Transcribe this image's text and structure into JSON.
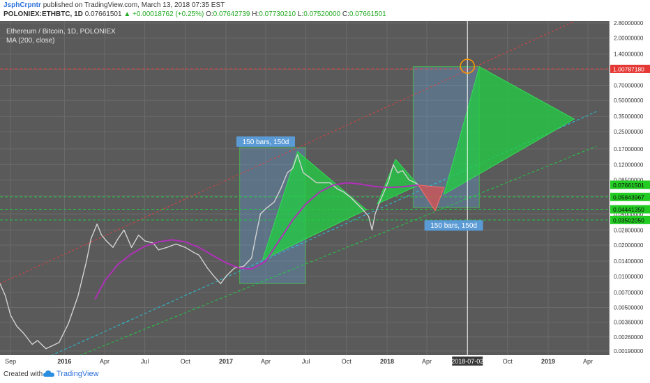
{
  "header": {
    "author": "JsphCrpntr",
    "published": "published on TradingView.com, March 13, 2018 07:35 EST",
    "symbol": "POLONIEX:ETHBTC, 1D",
    "last": "0.07661501",
    "change": "+0.00018762 (+0.25%)",
    "open_label": "O:",
    "open": "0.07642739",
    "high_label": "H:",
    "high": "0.07730210",
    "low_label": "L:",
    "low": "0.07520000",
    "close_label": "C:",
    "close": "0.07661501"
  },
  "legend": {
    "title": "Ethereum / Bitcoin, 1D, POLONIEX",
    "indicator": "MA (200, close)"
  },
  "footer": {
    "created": "Created with",
    "brand": "TradingView"
  },
  "colors": {
    "bg": "#5a5a5a",
    "grid": "#6b6b6b",
    "price": "#d2d2d2",
    "ma": "#b031b8",
    "up": "#22cc44",
    "down": "#e05050",
    "resistance": "#e04040",
    "support": "#26c6da",
    "box_blue": "#64b5f6",
    "box_green": "#4caf50",
    "label_bg": "#5b9bd5",
    "vline": "#ffffff"
  },
  "chart_data": {
    "type": "line",
    "title": "Ethereum / Bitcoin, 1D, POLONIEX",
    "scale": "log",
    "y_axis_ticks": [
      "2.80000000",
      "2.00000000",
      "1.40000000",
      "1.00000000",
      "0.70000000",
      "0.50000000",
      "0.35000000",
      "0.25000000",
      "0.17000000",
      "0.12000000",
      "0.08500000",
      "0.06000000",
      "0.04000000",
      "0.02800000",
      "0.02000000",
      "0.01400000",
      "0.01000000",
      "0.00700000",
      "0.00500000",
      "0.00360000",
      "0.00260000",
      "0.00190000"
    ],
    "x_axis_ticks": [
      {
        "date": "2015-09-01",
        "label": "Sep"
      },
      {
        "date": "2016-01-01",
        "label": "2016"
      },
      {
        "date": "2016-04-01",
        "label": "Apr"
      },
      {
        "date": "2016-07-01",
        "label": "Jul"
      },
      {
        "date": "2016-10-01",
        "label": "Oct"
      },
      {
        "date": "2017-01-01",
        "label": "2017"
      },
      {
        "date": "2017-04-01",
        "label": "Apr"
      },
      {
        "date": "2017-07-01",
        "label": "Jul"
      },
      {
        "date": "2017-10-01",
        "label": "Oct"
      },
      {
        "date": "2018-01-01",
        "label": "2018"
      },
      {
        "date": "2018-04-01",
        "label": "Apr"
      },
      {
        "date": "2018-10-01",
        "label": "Oct"
      },
      {
        "date": "2019-01-01",
        "label": "2019"
      },
      {
        "date": "2019-04-01",
        "label": "Apr"
      }
    ],
    "x_marker": {
      "date": "2018-07-02",
      "label": "2018-07-02"
    },
    "price_labels": [
      {
        "value": 1.0078718,
        "text": "1.00787180",
        "color": "#e53935"
      },
      {
        "value": 0.07661501,
        "text": "0.07661501",
        "color": "#22cc22"
      },
      {
        "value": 0.05843967,
        "text": "0.05843967",
        "color": "#22cc22"
      },
      {
        "value": 0.0444135,
        "text": "0.04441350",
        "color": "#22cc22"
      },
      {
        "value": 0.0350205,
        "text": "0.03502050",
        "color": "#22cc22"
      }
    ],
    "range_labels": [
      {
        "text": "150 bars, 150d",
        "anchor_date": "2017-04-01",
        "anchor_value": 0.2
      },
      {
        "text": "150 bars, 150d",
        "anchor_date": "2018-06-01",
        "anchor_value": 0.031
      }
    ],
    "series": [
      {
        "name": "ETHBTC",
        "points": [
          [
            "2015-08-08",
            0.0085
          ],
          [
            "2015-08-20",
            0.0065
          ],
          [
            "2015-09-01",
            0.0042
          ],
          [
            "2015-09-15",
            0.0033
          ],
          [
            "2015-10-01",
            0.0028
          ],
          [
            "2015-10-20",
            0.0022
          ],
          [
            "2015-11-01",
            0.0024
          ],
          [
            "2015-11-20",
            0.002
          ],
          [
            "2015-12-01",
            0.0021
          ],
          [
            "2015-12-20",
            0.0023
          ],
          [
            "2016-01-10",
            0.0035
          ],
          [
            "2016-02-01",
            0.0065
          ],
          [
            "2016-02-20",
            0.014
          ],
          [
            "2016-03-01",
            0.023
          ],
          [
            "2016-03-15",
            0.032
          ],
          [
            "2016-03-25",
            0.025
          ],
          [
            "2016-04-05",
            0.022
          ],
          [
            "2016-04-20",
            0.019
          ],
          [
            "2016-05-01",
            0.023
          ],
          [
            "2016-05-15",
            0.028
          ],
          [
            "2016-06-01",
            0.019
          ],
          [
            "2016-06-17",
            0.025
          ],
          [
            "2016-07-01",
            0.022
          ],
          [
            "2016-07-20",
            0.021
          ],
          [
            "2016-08-01",
            0.018
          ],
          [
            "2016-08-20",
            0.019
          ],
          [
            "2016-09-10",
            0.0205
          ],
          [
            "2016-10-01",
            0.019
          ],
          [
            "2016-10-20",
            0.017
          ],
          [
            "2016-11-01",
            0.016
          ],
          [
            "2016-11-20",
            0.012
          ],
          [
            "2016-12-05",
            0.01
          ],
          [
            "2016-12-20",
            0.0085
          ],
          [
            "2017-01-01",
            0.01
          ],
          [
            "2017-01-20",
            0.012
          ],
          [
            "2017-02-10",
            0.0125
          ],
          [
            "2017-02-28",
            0.015
          ],
          [
            "2017-03-10",
            0.025
          ],
          [
            "2017-03-20",
            0.04
          ],
          [
            "2017-04-01",
            0.045
          ],
          [
            "2017-04-20",
            0.052
          ],
          [
            "2017-05-05",
            0.07
          ],
          [
            "2017-05-20",
            0.1
          ],
          [
            "2017-06-01",
            0.11
          ],
          [
            "2017-06-12",
            0.15
          ],
          [
            "2017-06-25",
            0.1
          ],
          [
            "2017-07-10",
            0.09
          ],
          [
            "2017-07-25",
            0.08
          ],
          [
            "2017-08-10",
            0.08
          ],
          [
            "2017-08-25",
            0.08
          ],
          [
            "2017-09-10",
            0.07
          ],
          [
            "2017-09-25",
            0.065
          ],
          [
            "2017-10-10",
            0.058
          ],
          [
            "2017-10-25",
            0.05
          ],
          [
            "2017-11-05",
            0.045
          ],
          [
            "2017-11-20",
            0.038
          ],
          [
            "2017-11-28",
            0.028
          ],
          [
            "2017-12-05",
            0.04
          ],
          [
            "2017-12-15",
            0.052
          ],
          [
            "2017-12-25",
            0.065
          ],
          [
            "2018-01-05",
            0.085
          ],
          [
            "2018-01-15",
            0.12
          ],
          [
            "2018-01-25",
            0.1
          ],
          [
            "2018-02-05",
            0.105
          ],
          [
            "2018-02-20",
            0.085
          ],
          [
            "2018-03-01",
            0.082
          ],
          [
            "2018-03-13",
            0.0766
          ]
        ]
      },
      {
        "name": "MA (200, close)",
        "points": [
          [
            "2016-03-10",
            0.006
          ],
          [
            "2016-04-01",
            0.009
          ],
          [
            "2016-05-01",
            0.013
          ],
          [
            "2016-06-01",
            0.0165
          ],
          [
            "2016-07-01",
            0.0195
          ],
          [
            "2016-08-01",
            0.0215
          ],
          [
            "2016-09-01",
            0.0225
          ],
          [
            "2016-10-01",
            0.0215
          ],
          [
            "2016-11-01",
            0.019
          ],
          [
            "2016-12-01",
            0.016
          ],
          [
            "2017-01-01",
            0.0135
          ],
          [
            "2017-02-01",
            0.012
          ],
          [
            "2017-03-01",
            0.0118
          ],
          [
            "2017-04-01",
            0.014
          ],
          [
            "2017-05-01",
            0.022
          ],
          [
            "2017-06-01",
            0.035
          ],
          [
            "2017-07-01",
            0.05
          ],
          [
            "2017-08-01",
            0.065
          ],
          [
            "2017-09-01",
            0.076
          ],
          [
            "2017-10-01",
            0.08
          ],
          [
            "2017-11-01",
            0.078
          ],
          [
            "2017-12-01",
            0.074
          ],
          [
            "2018-01-01",
            0.072
          ],
          [
            "2018-02-01",
            0.073
          ],
          [
            "2018-03-13",
            0.076
          ]
        ]
      }
    ],
    "drawings": {
      "resistance_line": [
        [
          "2015-08-08",
          0.0085
        ],
        [
          "2019-03-01",
          2.9
        ]
      ],
      "support_line_blue": [
        [
          "2015-11-01",
          0.0015
        ],
        [
          "2019-04-20",
          0.39
        ]
      ],
      "support_line_green": [
        [
          "2015-12-15",
          0.0014
        ],
        [
          "2019-04-20",
          0.18
        ]
      ],
      "horizontal_red": 1.0078718,
      "horizontal_green": [
        0.05843967,
        0.0444135,
        0.0350205
      ],
      "range_box_1": {
        "from": "2017-02-01",
        "to": "2017-06-30",
        "low": 0.0085,
        "high": 0.175
      },
      "range_box_2": {
        "from": "2018-03-01",
        "to": "2018-07-29",
        "low": 0.046,
        "high": 1.06
      },
      "triangles_green": [
        [
          [
            "2017-03-25",
            0.0145
          ],
          [
            "2017-06-12",
            0.16
          ],
          [
            "2017-11-15",
            0.044
          ]
        ],
        [
          [
            "2017-12-10",
            0.05
          ],
          [
            "2018-01-20",
            0.135
          ],
          [
            "2018-03-13",
            0.076
          ]
        ],
        [
          [
            "2018-05-10",
            0.062
          ],
          [
            "2018-07-29",
            1.06
          ],
          [
            "2019-03-01",
            0.33
          ]
        ]
      ],
      "triangles_red": [
        [
          [
            "2018-03-13",
            0.076
          ],
          [
            "2018-04-20",
            0.043
          ],
          [
            "2018-05-10",
            0.072
          ]
        ]
      ],
      "circle": {
        "date": "2018-07-02",
        "value": 1.07
      }
    }
  }
}
